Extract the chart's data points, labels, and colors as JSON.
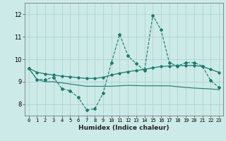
{
  "xlabel": "Humidex (Indice chaleur)",
  "background_color": "#cceae7",
  "grid_color": "#aacfcc",
  "line_color": "#1a7a6e",
  "xlim": [
    -0.5,
    23.5
  ],
  "ylim": [
    7.5,
    12.5
  ],
  "yticks": [
    8,
    9,
    10,
    11,
    12
  ],
  "xticks": [
    0,
    1,
    2,
    3,
    4,
    5,
    6,
    7,
    8,
    9,
    10,
    11,
    12,
    13,
    14,
    15,
    16,
    17,
    18,
    19,
    20,
    21,
    22,
    23
  ],
  "series1_x": [
    0,
    1,
    2,
    3,
    4,
    5,
    6,
    7,
    8,
    9,
    10,
    11,
    12,
    13,
    14,
    15,
    16,
    17,
    18,
    19,
    20,
    21,
    22,
    23
  ],
  "series1_y": [
    9.6,
    9.1,
    9.1,
    9.2,
    8.7,
    8.6,
    8.3,
    7.75,
    7.8,
    8.5,
    9.85,
    11.1,
    10.15,
    9.8,
    9.5,
    11.95,
    11.3,
    9.85,
    9.7,
    9.85,
    9.85,
    9.7,
    9.05,
    8.75
  ],
  "series2_x": [
    0,
    1,
    2,
    3,
    4,
    5,
    6,
    7,
    8,
    9,
    10,
    11,
    12,
    13,
    14,
    15,
    16,
    17,
    18,
    19,
    20,
    21,
    22,
    23
  ],
  "series2_y": [
    9.6,
    9.42,
    9.35,
    9.3,
    9.25,
    9.22,
    9.18,
    9.15,
    9.15,
    9.2,
    9.3,
    9.38,
    9.45,
    9.5,
    9.55,
    9.62,
    9.68,
    9.7,
    9.72,
    9.72,
    9.72,
    9.68,
    9.55,
    9.42
  ],
  "series3_x": [
    0,
    1,
    2,
    3,
    4,
    5,
    6,
    7,
    8,
    9,
    10,
    11,
    12,
    13,
    14,
    15,
    16,
    17,
    18,
    19,
    20,
    21,
    22,
    23
  ],
  "series3_y": [
    9.6,
    9.1,
    9.0,
    9.0,
    8.95,
    8.9,
    8.85,
    8.8,
    8.8,
    8.8,
    8.8,
    8.82,
    8.84,
    8.83,
    8.82,
    8.82,
    8.82,
    8.82,
    8.78,
    8.75,
    8.72,
    8.7,
    8.68,
    8.65
  ]
}
